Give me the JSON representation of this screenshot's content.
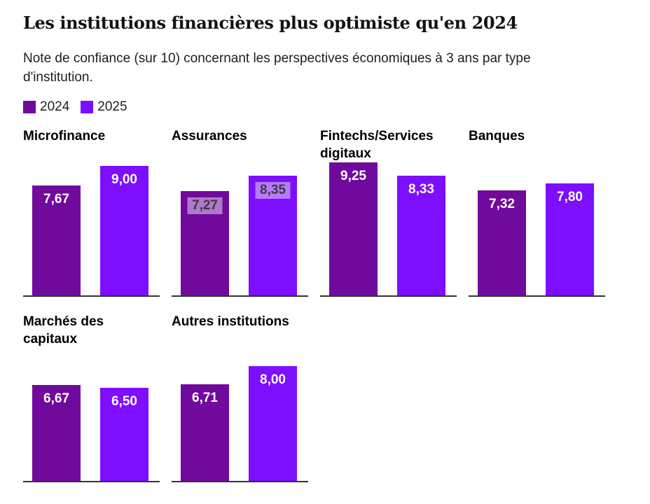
{
  "header": {
    "title": "Les institutions financières plus optimiste qu'en 2024",
    "subtitle": "Note de confiance (sur 10) concernant les perspectives économiques à 3 ans par type d'institution."
  },
  "legend": {
    "items": [
      {
        "label": "2024",
        "color": "#700a9c"
      },
      {
        "label": "2025",
        "color": "#7d0eff"
      }
    ]
  },
  "colors": {
    "series_2024": "#700a9c",
    "series_2025": "#7d0eff",
    "axis": "#333333",
    "label_plain": "#ffffff",
    "label_boxed_text": "#3d3d3d",
    "label_boxed_bg": "rgba(255,255,255,0.45)"
  },
  "chart_data": {
    "type": "bar",
    "title": "Les institutions financières plus optimiste qu'en 2024",
    "subtitle": "Note de confiance (sur 10) concernant les perspectives économiques à 3 ans par type d'institution.",
    "series_names": [
      "2024",
      "2025"
    ],
    "value_range": [
      0,
      10
    ],
    "grid": false,
    "legend_position": "top-left",
    "panels": [
      {
        "title": "Microfinance",
        "values": [
          7.67,
          9.0
        ],
        "labels": [
          "7,67",
          "9,00"
        ],
        "label_style": "plain"
      },
      {
        "title": "Assurances",
        "values": [
          7.27,
          8.35
        ],
        "labels": [
          "7,27",
          "8,35"
        ],
        "label_style": "boxed"
      },
      {
        "title": "Fintechs/Services digitaux",
        "values": [
          9.25,
          8.33
        ],
        "labels": [
          "9,25",
          "8,33"
        ],
        "label_style": "plain"
      },
      {
        "title": "Banques",
        "values": [
          7.32,
          7.8
        ],
        "labels": [
          "7,32",
          "7,80"
        ],
        "label_style": "plain"
      },
      {
        "title": "Marchés des capitaux",
        "values": [
          6.67,
          6.5
        ],
        "labels": [
          "6,67",
          "6,50"
        ],
        "label_style": "plain"
      },
      {
        "title": "Autres institutions",
        "values": [
          6.71,
          8.0
        ],
        "labels": [
          "6,71",
          "8,00"
        ],
        "label_style": "plain"
      }
    ]
  }
}
